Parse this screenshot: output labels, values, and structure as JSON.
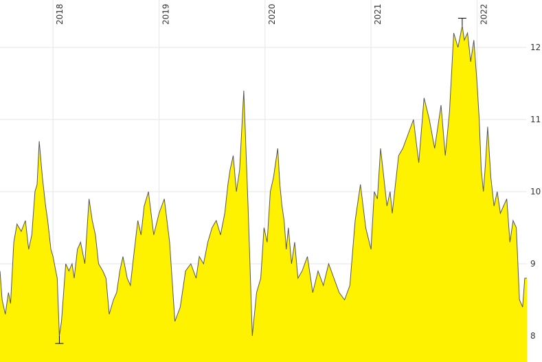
{
  "chart_data": {
    "type": "area",
    "title": "",
    "xlabel": "",
    "ylabel": "",
    "x_ticks": [
      "2018",
      "2019",
      "2020",
      "2021",
      "2022"
    ],
    "y_ticks": [
      8,
      9,
      10,
      11,
      12
    ],
    "ylim": [
      7.7,
      12.6
    ],
    "xlim": [
      2017.5,
      2022.47
    ],
    "grid": true,
    "y_axis_side": "right",
    "x_tick_label_orientation": "vertical-top",
    "series": [
      {
        "x": [
          2017.5,
          2017.52,
          2017.55,
          2017.58,
          2017.6,
          2017.63,
          2017.66,
          2017.7,
          2017.74,
          2017.77,
          2017.8,
          2017.83,
          2017.85,
          2017.87,
          2017.9,
          2017.93,
          2017.95,
          2017.98,
          2018.0,
          2018.02,
          2018.04,
          2018.06,
          2018.08,
          2018.1,
          2018.12,
          2018.15,
          2018.18,
          2018.2,
          2018.23,
          2018.26,
          2018.3,
          2018.34,
          2018.37,
          2018.4,
          2018.43,
          2018.47,
          2018.5,
          2018.53,
          2018.57,
          2018.6,
          2018.63,
          2018.66,
          2018.7,
          2018.73,
          2018.76,
          2018.8,
          2018.83,
          2018.86,
          2018.9,
          2018.95,
          2019.0,
          2019.05,
          2019.1,
          2019.15,
          2019.2,
          2019.25,
          2019.3,
          2019.35,
          2019.38,
          2019.42,
          2019.46,
          2019.5,
          2019.54,
          2019.58,
          2019.62,
          2019.65,
          2019.67,
          2019.7,
          2019.73,
          2019.76,
          2019.8,
          2019.84,
          2019.88,
          2019.92,
          2019.96,
          2019.99,
          2020.02,
          2020.05,
          2020.08,
          2020.1,
          2020.12,
          2020.14,
          2020.16,
          2020.18,
          2020.2,
          2020.22,
          2020.25,
          2020.28,
          2020.31,
          2020.35,
          2020.4,
          2020.45,
          2020.5,
          2020.55,
          2020.6,
          2020.65,
          2020.7,
          2020.75,
          2020.8,
          2020.85,
          2020.9,
          2020.95,
          2021.0,
          2021.03,
          2021.06,
          2021.09,
          2021.12,
          2021.15,
          2021.18,
          2021.2,
          2021.23,
          2021.26,
          2021.3,
          2021.35,
          2021.4,
          2021.45,
          2021.5,
          2021.55,
          2021.6,
          2021.63,
          2021.66,
          2021.7,
          2021.74,
          2021.78,
          2021.82,
          2021.86,
          2021.88,
          2021.91,
          2021.94,
          2021.97,
          2022.0,
          2022.02,
          2022.04,
          2022.06,
          2022.08,
          2022.1,
          2022.13,
          2022.16,
          2022.19,
          2022.22,
          2022.25,
          2022.28,
          2022.31,
          2022.34,
          2022.37,
          2022.4,
          2022.43,
          2022.45,
          2022.47
        ],
        "values": [
          8.9,
          8.5,
          8.3,
          8.6,
          8.45,
          9.3,
          9.55,
          9.45,
          9.6,
          9.2,
          9.4,
          10.0,
          10.1,
          10.7,
          10.2,
          9.8,
          9.6,
          9.2,
          9.1,
          8.95,
          8.8,
          8.0,
          8.2,
          8.6,
          9.0,
          8.9,
          9.0,
          8.8,
          9.2,
          9.3,
          9.0,
          9.9,
          9.6,
          9.4,
          9.0,
          8.9,
          8.8,
          8.3,
          8.5,
          8.6,
          8.9,
          9.1,
          8.8,
          8.7,
          9.1,
          9.6,
          9.4,
          9.8,
          10.0,
          9.4,
          9.7,
          9.9,
          9.3,
          8.2,
          8.4,
          8.9,
          9.0,
          8.8,
          9.1,
          9.0,
          9.3,
          9.5,
          9.6,
          9.4,
          9.7,
          10.1,
          10.3,
          10.5,
          10.0,
          10.3,
          11.4,
          9.8,
          8.0,
          8.6,
          8.8,
          9.5,
          9.3,
          10.0,
          10.2,
          10.4,
          10.6,
          10.1,
          9.8,
          9.6,
          9.2,
          9.5,
          9.0,
          9.3,
          8.8,
          8.9,
          9.1,
          8.6,
          8.9,
          8.7,
          9.0,
          8.8,
          8.6,
          8.5,
          8.7,
          9.6,
          10.1,
          9.5,
          9.2,
          10.0,
          9.9,
          10.6,
          10.2,
          9.8,
          10.0,
          9.7,
          10.1,
          10.5,
          10.6,
          10.8,
          11.0,
          10.4,
          11.3,
          11.0,
          10.6,
          10.9,
          11.2,
          10.5,
          11.1,
          12.2,
          12.0,
          12.3,
          12.1,
          12.2,
          11.8,
          12.1,
          11.5,
          11.0,
          10.3,
          10.0,
          10.4,
          10.9,
          10.2,
          9.8,
          10.0,
          9.7,
          9.8,
          9.9,
          9.3,
          9.6,
          9.5,
          8.5,
          8.4,
          8.8,
          8.8
        ]
      }
    ],
    "colors": {
      "area_fill": "#fff200",
      "line": "#555555",
      "grid": "#e6e6e6",
      "text": "#333333",
      "background": "#ffffff"
    },
    "annotations": {
      "min_marker": "low-2018",
      "max_marker": "high-2022"
    }
  }
}
